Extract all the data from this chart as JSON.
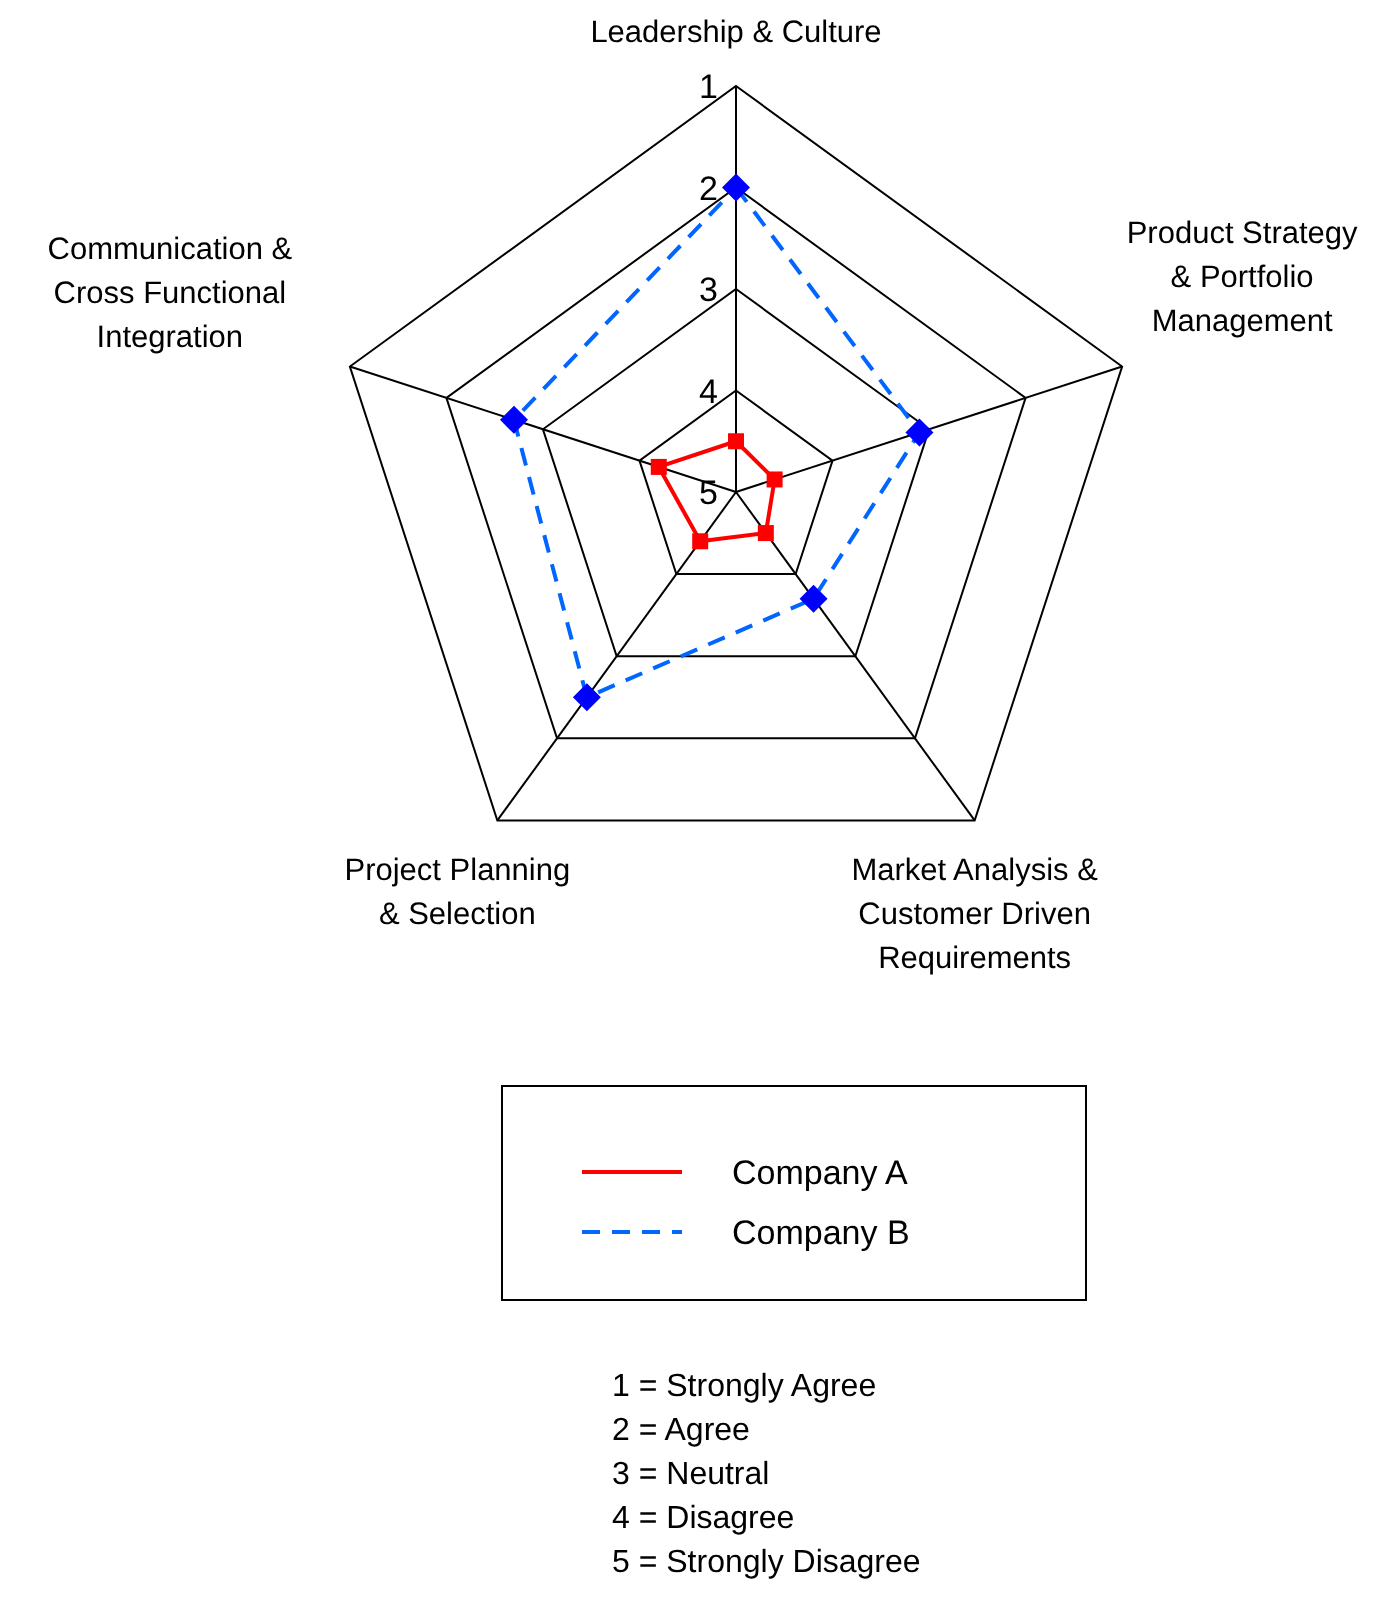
{
  "chart_data": {
    "type": "radar",
    "categories": [
      "Leadership & Culture",
      "Product Strategy & Portfolio Management",
      "Market Analysis & Customer Driven Requirements",
      "Project Planning & Selection",
      "Communication & Cross Functional Integration"
    ],
    "ylim": [
      5,
      1
    ],
    "yticks": [
      1,
      2,
      3,
      4,
      5
    ],
    "legend": "bottom",
    "grid": true,
    "series": [
      {
        "name": "Company A",
        "color": "#ff0000",
        "values": [
          4.5,
          4.6,
          4.5,
          4.4,
          4.2
        ],
        "marker": "square",
        "line_style": "solid"
      },
      {
        "name": "Company B",
        "color": "#0066ff",
        "values": [
          2,
          3.1,
          3.7,
          2.5,
          2.7
        ],
        "marker": "diamond",
        "line_style": "dashed"
      }
    ],
    "annotations": [
      "1 = Strongly Agree",
      "2 = Agree",
      "3 = Neutral",
      "4 = Disagree",
      "5 = Strongly Disagree"
    ]
  }
}
